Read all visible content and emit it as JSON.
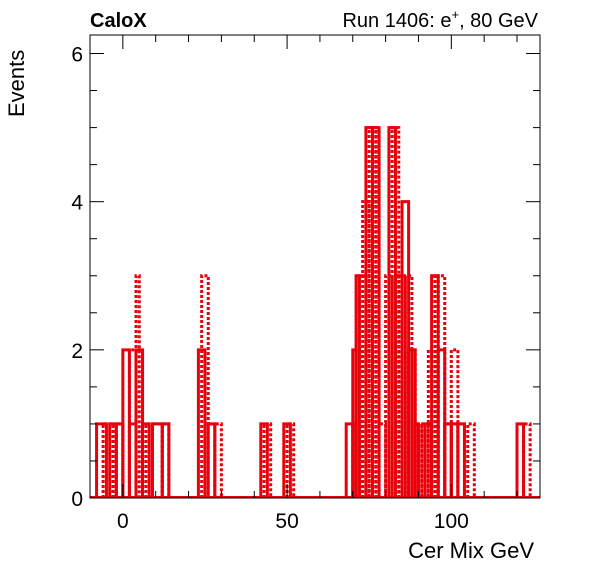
{
  "header": {
    "left_title": "CaloX",
    "right_title_prefix": "Run 1406: e",
    "right_title_sup": "+",
    "right_title_suffix": ", 80 GeV"
  },
  "chart_data": {
    "type": "histogram",
    "xlabel": "Cer Mix GeV",
    "ylabel": "Events",
    "xlim": [
      -10,
      127
    ],
    "ylim": [
      0,
      6.25
    ],
    "xticks": [
      0,
      50,
      100
    ],
    "yticks": [
      0,
      2,
      4,
      6
    ],
    "grid": false,
    "colors": {
      "line": "#e8000b",
      "axis": "#000000"
    },
    "series": [
      {
        "style": "solid",
        "bins": [
          [
            -8,
            -5,
            1
          ],
          [
            -4,
            -2,
            1
          ],
          [
            -2,
            0,
            1
          ],
          [
            0,
            2,
            2
          ],
          [
            2,
            4,
            1
          ],
          [
            4,
            6,
            2
          ],
          [
            6,
            8,
            1
          ],
          [
            9,
            12,
            1
          ],
          [
            12,
            14,
            1
          ],
          [
            23,
            25,
            2
          ],
          [
            25,
            28,
            1
          ],
          [
            42,
            44,
            1
          ],
          [
            49,
            51,
            1
          ],
          [
            68,
            70,
            1
          ],
          [
            70,
            71,
            2
          ],
          [
            71,
            72,
            3
          ],
          [
            72,
            74,
            3
          ],
          [
            74,
            76,
            5
          ],
          [
            76,
            78,
            5
          ],
          [
            81,
            83,
            5
          ],
          [
            83,
            85,
            3
          ],
          [
            85,
            87,
            4
          ],
          [
            87,
            89,
            2
          ],
          [
            89,
            90,
            1
          ],
          [
            92,
            94,
            1
          ],
          [
            94,
            96,
            3
          ],
          [
            96,
            98,
            2
          ],
          [
            98,
            100,
            1
          ],
          [
            100,
            102,
            1
          ],
          [
            102,
            104,
            1
          ],
          [
            120,
            122,
            1
          ]
        ]
      },
      {
        "style": "dotted",
        "bins": [
          [
            -6,
            -3,
            1
          ],
          [
            -2,
            0,
            1
          ],
          [
            2,
            4,
            2
          ],
          [
            4,
            5,
            3
          ],
          [
            7,
            9,
            1
          ],
          [
            9,
            12,
            1
          ],
          [
            12,
            14,
            1
          ],
          [
            24,
            26,
            3
          ],
          [
            26,
            28,
            1
          ],
          [
            28,
            30,
            1
          ],
          [
            43,
            45,
            1
          ],
          [
            50,
            52,
            1
          ],
          [
            70,
            72,
            1
          ],
          [
            71,
            73,
            2
          ],
          [
            73,
            75,
            4
          ],
          [
            75,
            77,
            5
          ],
          [
            77,
            78,
            5
          ],
          [
            78,
            80,
            1
          ],
          [
            80,
            82,
            3
          ],
          [
            82,
            84,
            5
          ],
          [
            84,
            86,
            3
          ],
          [
            86,
            88,
            3
          ],
          [
            88,
            89,
            2
          ],
          [
            89,
            91,
            1
          ],
          [
            91,
            93,
            1
          ],
          [
            93,
            95,
            2
          ],
          [
            95,
            96,
            3
          ],
          [
            96,
            98,
            3
          ],
          [
            98,
            100,
            1
          ],
          [
            100,
            102,
            2
          ],
          [
            102,
            104,
            1
          ],
          [
            105,
            107,
            1
          ],
          [
            122,
            124,
            1
          ]
        ]
      }
    ]
  }
}
